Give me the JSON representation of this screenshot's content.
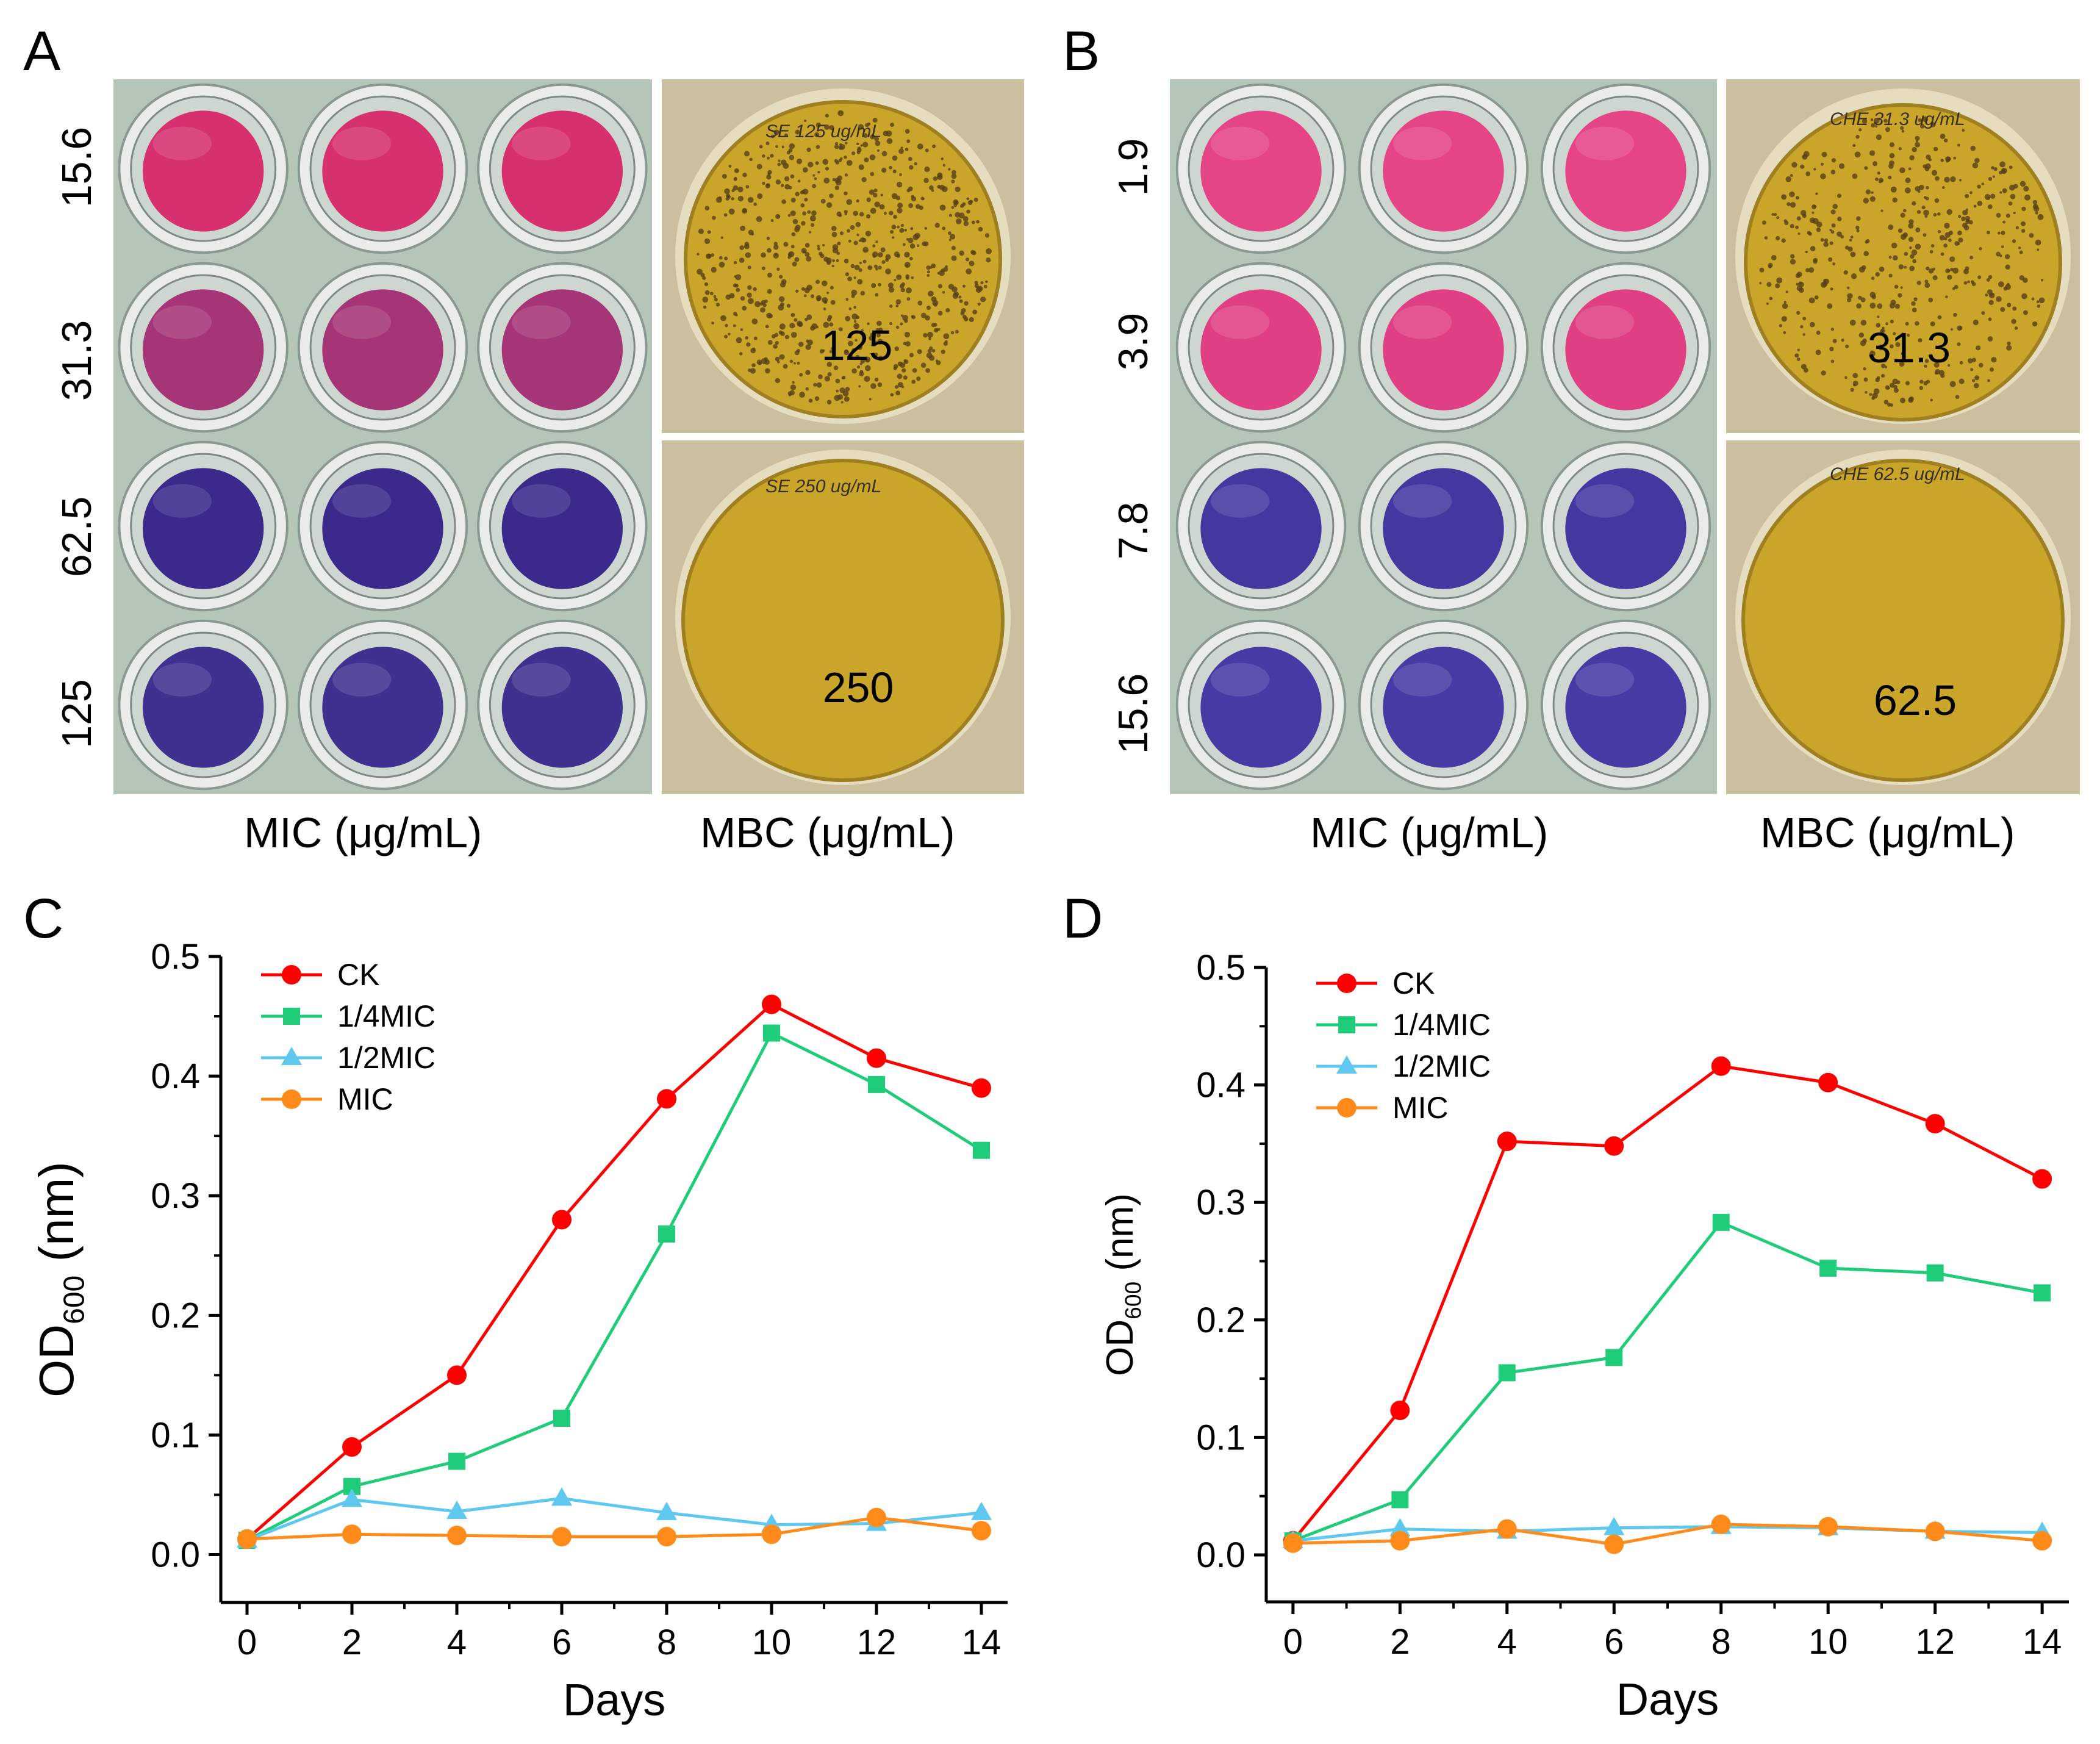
{
  "panels": {
    "A": {
      "letter": "A",
      "concentrations": [
        "15.6",
        "31.3",
        "62.5",
        "125"
      ],
      "well_colors": [
        "#d6306f",
        "#a53576",
        "#3b2a8c",
        "#3e3190"
      ],
      "mbc_values": [
        "125",
        "250"
      ],
      "handwriting": [
        "SE 125 ug/mL",
        "SE 250 ug/mL"
      ],
      "mic_caption": "MIC (μg/mL)",
      "mbc_caption": "MBC (μg/mL)"
    },
    "B": {
      "letter": "B",
      "concentrations": [
        "1.9",
        "3.9",
        "7.8",
        "15.6"
      ],
      "well_colors": [
        "#e54487",
        "#e13f83",
        "#4238a0",
        "#463ba5"
      ],
      "mbc_values": [
        "31.3",
        "62.5"
      ],
      "handwriting": [
        "CHE 31.3 ug/mL",
        "CHE 62.5 ug/mL"
      ],
      "mic_caption": "MIC (μg/mL)",
      "mbc_caption": "MBC (μg/mL)"
    },
    "C": {
      "letter": "C"
    },
    "D": {
      "letter": "D"
    }
  },
  "colors": {
    "CK": "#ff0000",
    "quarter_mic": "#1fcc7a",
    "half_mic": "#5ec8ef",
    "mic": "#ff8c1a",
    "plate": "#b5c6b9",
    "dish_agar": "#c9a52a"
  },
  "chart_data": [
    {
      "type": "line",
      "panel": "C",
      "title": "",
      "xlabel": "Days",
      "ylabel_main": "OD",
      "ylabel_sub": "600",
      "ylabel_unit": " (nm)",
      "x": [
        0,
        2,
        4,
        6,
        8,
        10,
        12,
        14
      ],
      "xlim": [
        -0.5,
        14.5
      ],
      "ylim": [
        -0.04,
        0.5
      ],
      "xticks": [
        "0",
        "2",
        "4",
        "6",
        "8",
        "10",
        "12",
        "14"
      ],
      "yticks": [
        "0.0",
        "0.1",
        "0.2",
        "0.3",
        "0.4",
        "0.5"
      ],
      "legend_position": "top-left",
      "series": [
        {
          "name": "CK",
          "marker": "circle",
          "values": [
            0.013,
            0.09,
            0.15,
            0.28,
            0.381,
            0.46,
            0.415,
            0.39
          ]
        },
        {
          "name": "1/4MIC",
          "marker": "square",
          "values": [
            0.012,
            0.057,
            0.078,
            0.114,
            0.268,
            0.436,
            0.393,
            0.338
          ]
        },
        {
          "name": "1/2MIC",
          "marker": "triangle",
          "values": [
            0.012,
            0.046,
            0.036,
            0.047,
            0.035,
            0.025,
            0.026,
            0.035
          ]
        },
        {
          "name": "MIC",
          "marker": "circle",
          "values": [
            0.013,
            0.017,
            0.016,
            0.015,
            0.015,
            0.017,
            0.031,
            0.02
          ]
        }
      ]
    },
    {
      "type": "line",
      "panel": "D",
      "title": "",
      "xlabel": "Days",
      "ylabel_main": "OD",
      "ylabel_sub": "600",
      "ylabel_unit": " (nm)",
      "x": [
        0,
        2,
        4,
        6,
        8,
        10,
        12,
        14
      ],
      "xlim": [
        -0.5,
        14.5
      ],
      "ylim": [
        -0.04,
        0.5
      ],
      "xticks": [
        "0",
        "2",
        "4",
        "6",
        "8",
        "10",
        "12",
        "14"
      ],
      "yticks": [
        "0.0",
        "0.1",
        "0.2",
        "0.3",
        "0.4",
        "0.5"
      ],
      "legend_position": "top-left",
      "series": [
        {
          "name": "CK",
          "marker": "circle",
          "values": [
            0.012,
            0.123,
            0.352,
            0.348,
            0.416,
            0.402,
            0.367,
            0.32
          ]
        },
        {
          "name": "1/4MIC",
          "marker": "square",
          "values": [
            0.012,
            0.047,
            0.155,
            0.168,
            0.283,
            0.244,
            0.24,
            0.223
          ]
        },
        {
          "name": "1/2MIC",
          "marker": "triangle",
          "values": [
            0.012,
            0.022,
            0.02,
            0.023,
            0.024,
            0.023,
            0.02,
            0.019
          ]
        },
        {
          "name": "MIC",
          "marker": "circle",
          "values": [
            0.01,
            0.012,
            0.022,
            0.009,
            0.026,
            0.024,
            0.02,
            0.012
          ]
        }
      ]
    }
  ]
}
